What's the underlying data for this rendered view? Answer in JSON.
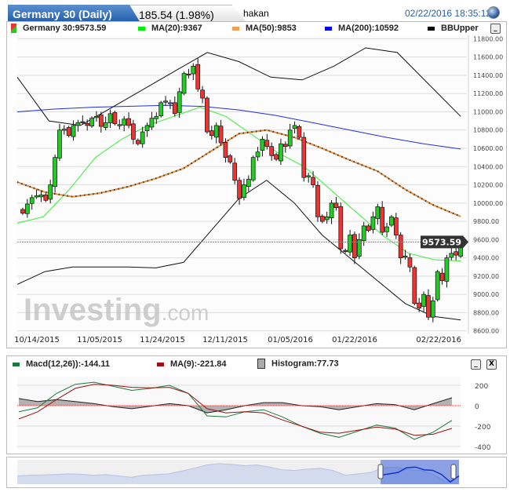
{
  "header": {
    "title": "Germany 30 (Daily)",
    "change": "185.54 (1.98%)",
    "user": "hakan",
    "timestamp": "02/22/2016 18:35:12"
  },
  "legend": {
    "price": "Germany 30:9573.59",
    "ma20": "MA(20):9367",
    "ma50": "MA(50):9853",
    "ma200": "MA(200):10592",
    "bb": "BBUpper"
  },
  "macd_legend": {
    "macd": "Macd(12,26)):-144.11",
    "ma": "MA(9):-221.84",
    "hist": "Histogram:77.73"
  },
  "buttons": {
    "minimize": "_",
    "close": "X"
  },
  "watermark": "Investing.com",
  "colors": {
    "up": "#22cc22",
    "down": "#ee3333",
    "ma20": "#33ee33",
    "ma50": "#f0a050",
    "ma200": "#1f2fe0",
    "bb": "#111111",
    "macd": "#1e7a3c",
    "signal": "#a01010",
    "hist": "#aaaaaa",
    "nav": "#3b5fd8"
  },
  "chart_data": [
    {
      "type": "candlestick",
      "title": "Germany 30 (Daily)",
      "ylim": [
        8600,
        11800
      ],
      "y_ticks": [
        "11800.00",
        "11600.00",
        "11400.00",
        "11200.00",
        "11000.00",
        "10800.00",
        "10600.00",
        "10400.00",
        "10200.00",
        "10000.00",
        "9800.00",
        "9600.00",
        "9400.00",
        "9200.00",
        "9000.00",
        "8800.00",
        "8600.00"
      ],
      "x_ticks": [
        "10/14/2015",
        "11/05/2015",
        "11/24/2015",
        "12/11/2015",
        "01/05/2016",
        "01/22/2016",
        "02/22/2016"
      ],
      "last_price_label": "9573.59",
      "closes": [
        9890,
        9990,
        10060,
        10080,
        10090,
        10030,
        10200,
        10500,
        10800,
        10810,
        10740,
        10850,
        10880,
        10890,
        10850,
        10930,
        10950,
        10840,
        10880,
        10980,
        10870,
        10860,
        10920,
        10850,
        10700,
        10650,
        10780,
        10850,
        10930,
        10950,
        11100,
        11110,
        11100,
        10980,
        11220,
        11420,
        11410,
        11500,
        11250,
        11150,
        10780,
        10740,
        10850,
        10660,
        10500,
        10450,
        10250,
        10050,
        10200,
        10260,
        10500,
        10560,
        10700,
        10620,
        10520,
        10480,
        10650,
        10620,
        10800,
        10850,
        10720,
        10280,
        10300,
        10200,
        9850,
        9800,
        9850,
        10000,
        9950,
        9500,
        9470,
        9650,
        9400,
        9600,
        9750,
        9700,
        9850,
        9960,
        9680,
        9740,
        9850,
        9650,
        9400,
        9420,
        9300,
        8900,
        8850,
        9000,
        8750,
        8930,
        9250,
        9150,
        9400,
        9450,
        9430,
        9573.59
      ],
      "series": [
        {
          "name": "MA(20)",
          "values": [
            9780,
            9850,
            10150,
            10500,
            10700,
            10850,
            10950,
            11050,
            10950,
            10750,
            10550,
            10400,
            10150,
            9900,
            9650,
            9450,
            9380,
            9367
          ]
        },
        {
          "name": "MA(50)",
          "values": [
            10230,
            10120,
            10070,
            10110,
            10180,
            10270,
            10380,
            10570,
            10760,
            10800,
            10720,
            10600,
            10470,
            10350,
            10150,
            9980,
            9853
          ]
        },
        {
          "name": "MA(200)",
          "values": [
            11000,
            11030,
            11050,
            11060,
            11070,
            11060,
            11020,
            10960,
            10880,
            10800,
            10720,
            10650,
            10592
          ]
        },
        {
          "name": "BBUpper",
          "values": [
            11380,
            10900,
            10850,
            11050,
            11250,
            11450,
            11650,
            11550,
            11380,
            11350,
            11500,
            11700,
            11650,
            11300,
            10950
          ]
        },
        {
          "name": "BBLower",
          "values": [
            9110,
            9250,
            9300,
            9300,
            9300,
            9290,
            9350,
            9700,
            10050,
            10250,
            10000,
            9650,
            9400,
            9150,
            8900,
            8760,
            8720
          ]
        }
      ]
    },
    {
      "type": "line",
      "title": "Macd(12,26)",
      "ylim": [
        -400,
        300
      ],
      "y_ticks": [
        "200",
        "0",
        "-200",
        "-400"
      ],
      "series": [
        {
          "name": "Macd(12,26)",
          "values": [
            -60,
            -20,
            120,
            210,
            230,
            190,
            150,
            170,
            200,
            120,
            -100,
            -110,
            -60,
            -40,
            -110,
            -200,
            -270,
            -310,
            -250,
            -190,
            -220,
            -330,
            -260,
            -144
          ]
        },
        {
          "name": "MA(9)",
          "values": [
            -130,
            -60,
            60,
            170,
            210,
            200,
            180,
            175,
            180,
            120,
            -30,
            -70,
            -60,
            -70,
            -140,
            -200,
            -260,
            -270,
            -240,
            -210,
            -230,
            -290,
            -280,
            -222
          ]
        }
      ]
    },
    {
      "type": "area",
      "title": "navigator",
      "values": [
        9600,
        9700,
        9750,
        9800,
        9900,
        9850,
        9700,
        9800,
        9600,
        9400,
        9700,
        9800,
        9900,
        10300,
        10700,
        11200,
        11400,
        11300,
        11100,
        11200,
        10900,
        10500,
        10400,
        10600,
        10700,
        10400,
        9700,
        9900,
        10100,
        10800,
        10900,
        10500,
        10400,
        9800,
        8700,
        9600
      ],
      "selection": [
        "10/14/2015",
        "02/22/2016"
      ]
    }
  ]
}
